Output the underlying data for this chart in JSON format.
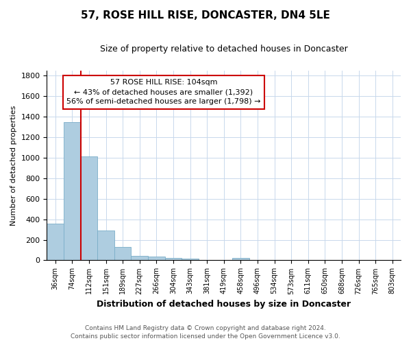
{
  "title": "57, ROSE HILL RISE, DONCASTER, DN4 5LE",
  "subtitle": "Size of property relative to detached houses in Doncaster",
  "xlabel": "Distribution of detached houses by size in Doncaster",
  "ylabel": "Number of detached properties",
  "bin_labels": [
    "36sqm",
    "74sqm",
    "112sqm",
    "151sqm",
    "189sqm",
    "227sqm",
    "266sqm",
    "304sqm",
    "343sqm",
    "381sqm",
    "419sqm",
    "458sqm",
    "496sqm",
    "534sqm",
    "573sqm",
    "611sqm",
    "650sqm",
    "688sqm",
    "726sqm",
    "765sqm",
    "803sqm"
  ],
  "bar_heights": [
    355,
    1350,
    1010,
    290,
    130,
    45,
    35,
    20,
    15,
    0,
    0,
    20,
    0,
    0,
    0,
    0,
    0,
    0,
    0,
    0,
    0
  ],
  "bar_color": "#aecde0",
  "bar_edge_color": "#7aaec8",
  "vline_color": "#cc0000",
  "vline_bin_index": 2,
  "annotation_text": "57 ROSE HILL RISE: 104sqm\n← 43% of detached houses are smaller (1,392)\n56% of semi-detached houses are larger (1,798) →",
  "annotation_box_color": "#cc0000",
  "ylim": [
    0,
    1850
  ],
  "yticks": [
    0,
    200,
    400,
    600,
    800,
    1000,
    1200,
    1400,
    1600,
    1800
  ],
  "background_color": "#ffffff",
  "grid_color": "#c8d8ec",
  "footer_line1": "Contains HM Land Registry data © Crown copyright and database right 2024.",
  "footer_line2": "Contains public sector information licensed under the Open Government Licence v3.0.",
  "title_fontsize": 11,
  "subtitle_fontsize": 9,
  "ylabel_fontsize": 8,
  "xlabel_fontsize": 9,
  "tick_fontsize": 7,
  "footer_fontsize": 6.5
}
